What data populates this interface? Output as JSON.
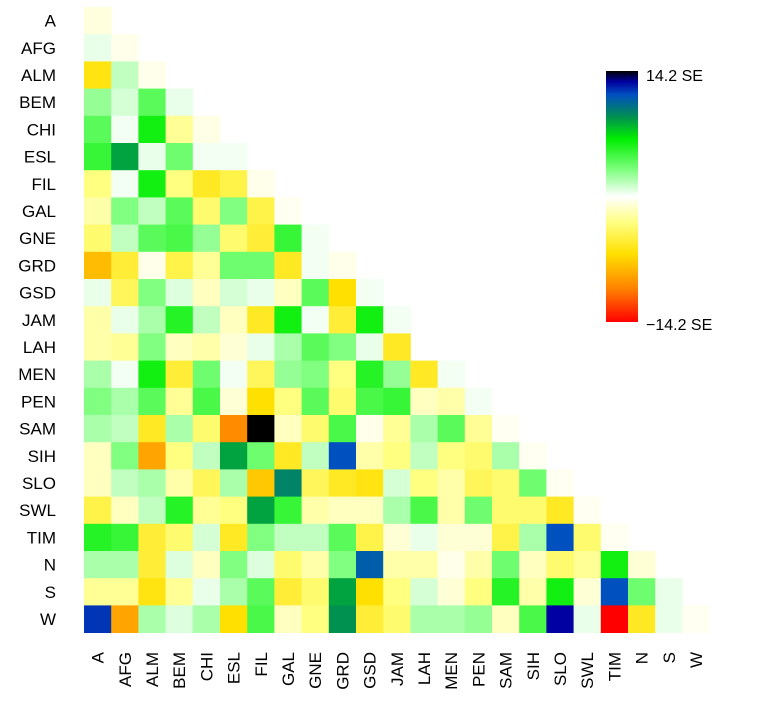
{
  "chart_data": {
    "type": "heatmap",
    "title": "",
    "xlabel": "",
    "ylabel": "",
    "labels": [
      "A",
      "AFG",
      "ALM",
      "BEM",
      "CHI",
      "ESL",
      "FIL",
      "GAL",
      "GNE",
      "GRD",
      "GSD",
      "JAM",
      "LAH",
      "MEN",
      "PEN",
      "SAM",
      "SIH",
      "SLO",
      "SWL",
      "TIM",
      "N",
      "S",
      "W"
    ],
    "triangle": "lower (including diagonal)",
    "unit": "SE",
    "color_range": [
      -14.2,
      14.2
    ],
    "colorbar": {
      "max_label": "14.2 SE",
      "min_label": "−14.2 SE",
      "placement": "right"
    },
    "colormap": [
      [
        -14.2,
        "#ff0000"
      ],
      [
        -10.5,
        "#ff8000"
      ],
      [
        -6.5,
        "#ffe000"
      ],
      [
        -3.0,
        "#ffff80"
      ],
      [
        0,
        "#ffffff"
      ],
      [
        3.0,
        "#80ff80"
      ],
      [
        6.5,
        "#00ee00"
      ],
      [
        9.0,
        "#009050"
      ],
      [
        11.5,
        "#0050c0"
      ],
      [
        13.0,
        "#0000a0"
      ],
      [
        14.2,
        "#000000"
      ]
    ],
    "values": [
      [
        -0.8
      ],
      [
        0.5,
        -0.5
      ],
      [
        -6.0,
        1.5,
        -0.5
      ],
      [
        2.5,
        1.0,
        4.0,
        0.5
      ],
      [
        4.0,
        0.3,
        6.0,
        -2.5,
        -0.6
      ],
      [
        5.0,
        8.5,
        0.5,
        3.5,
        0.3,
        0.3
      ],
      [
        -3.0,
        0.3,
        6.0,
        -3.0,
        -5.5,
        -4.5,
        -0.5
      ],
      [
        -2.0,
        3.0,
        1.5,
        4.0,
        -3.5,
        3.0,
        -4.5,
        -0.3
      ],
      [
        -3.5,
        1.5,
        4.0,
        4.5,
        2.5,
        -3.5,
        -5.0,
        5.0,
        0.3
      ],
      [
        -8.0,
        -5.0,
        -0.5,
        -4.5,
        -2.5,
        3.5,
        3.5,
        -5.5,
        0.3,
        -0.5
      ],
      [
        0.5,
        -4.0,
        3.0,
        0.8,
        -1.5,
        1.0,
        0.5,
        -1.5,
        4.0,
        -6.5,
        0.3
      ],
      [
        -2.0,
        0.5,
        2.0,
        5.5,
        1.5,
        -1.5,
        -5.5,
        6.0,
        0.3,
        -5.0,
        6.0,
        0.3
      ],
      [
        -2.0,
        -2.5,
        3.0,
        -1.5,
        -2.0,
        -1.0,
        0.5,
        2.0,
        4.0,
        3.0,
        0.5,
        -5.5
      ],
      [
        2.0,
        0.3,
        6.0,
        -5.0,
        3.5,
        0.3,
        -4.0,
        2.5,
        3.0,
        -3.0,
        5.5,
        2.5,
        -5.5,
        0.3
      ],
      [
        3.0,
        2.0,
        4.0,
        -2.5,
        4.5,
        -1.0,
        -6.5,
        -3.0,
        4.0,
        -3.5,
        4.5,
        5.0,
        -1.5,
        -2.0,
        0.3
      ],
      [
        2.0,
        1.5,
        -5.5,
        2.0,
        -3.5,
        -10.0,
        14.2,
        -1.5,
        -3.5,
        4.5,
        -0.5,
        -2.5,
        2.0,
        4.0,
        -2.5,
        -0.3
      ],
      [
        -1.5,
        3.0,
        -9.0,
        -3.0,
        1.5,
        8.5,
        3.5,
        -5.5,
        1.5,
        11.5,
        -2.0,
        -3.0,
        1.5,
        -3.0,
        -3.5,
        2.0,
        -0.3
      ],
      [
        -1.5,
        1.5,
        2.0,
        -2.0,
        -4.0,
        2.0,
        -7.5,
        9.5,
        -4.0,
        -5.5,
        -6.0,
        1.0,
        -3.0,
        -2.0,
        -4.0,
        -3.5,
        3.5,
        -0.3
      ],
      [
        -4.5,
        -1.5,
        1.5,
        5.5,
        -2.5,
        -3.0,
        8.5,
        5.0,
        -2.0,
        -1.5,
        -1.5,
        2.0,
        4.5,
        -2.0,
        3.5,
        -3.5,
        -3.5,
        -5.5,
        -0.3
      ],
      [
        5.5,
        5.0,
        -5.0,
        -3.5,
        1.0,
        -5.5,
        3.0,
        1.5,
        1.5,
        4.0,
        -4.5,
        -1.0,
        0.5,
        -1.0,
        -1.0,
        -4.5,
        2.0,
        11.5,
        -3.5,
        -0.3
      ],
      [
        2.0,
        2.0,
        -5.0,
        0.8,
        -1.5,
        3.0,
        0.8,
        -3.5,
        -2.0,
        3.0,
        11.0,
        -2.0,
        -2.0,
        -0.5,
        -2.0,
        3.5,
        -1.5,
        -3.5,
        -2.5,
        6.0,
        -1.0
      ],
      [
        -2.5,
        -2.5,
        -6.0,
        -2.5,
        0.5,
        2.0,
        4.0,
        -5.0,
        -3.5,
        8.5,
        -6.5,
        -3.0,
        1.0,
        -1.0,
        -3.0,
        5.5,
        -2.0,
        6.0,
        -1.0,
        11.5,
        3.5,
        0.5
      ],
      [
        12.0,
        -9.0,
        2.0,
        0.8,
        2.0,
        -6.5,
        4.5,
        -1.5,
        -3.0,
        9.0,
        -5.0,
        -3.5,
        2.0,
        2.0,
        2.5,
        -1.5,
        4.5,
        13.0,
        0.5,
        -14.2,
        -5.5,
        0.5,
        -0.3
      ]
    ]
  }
}
